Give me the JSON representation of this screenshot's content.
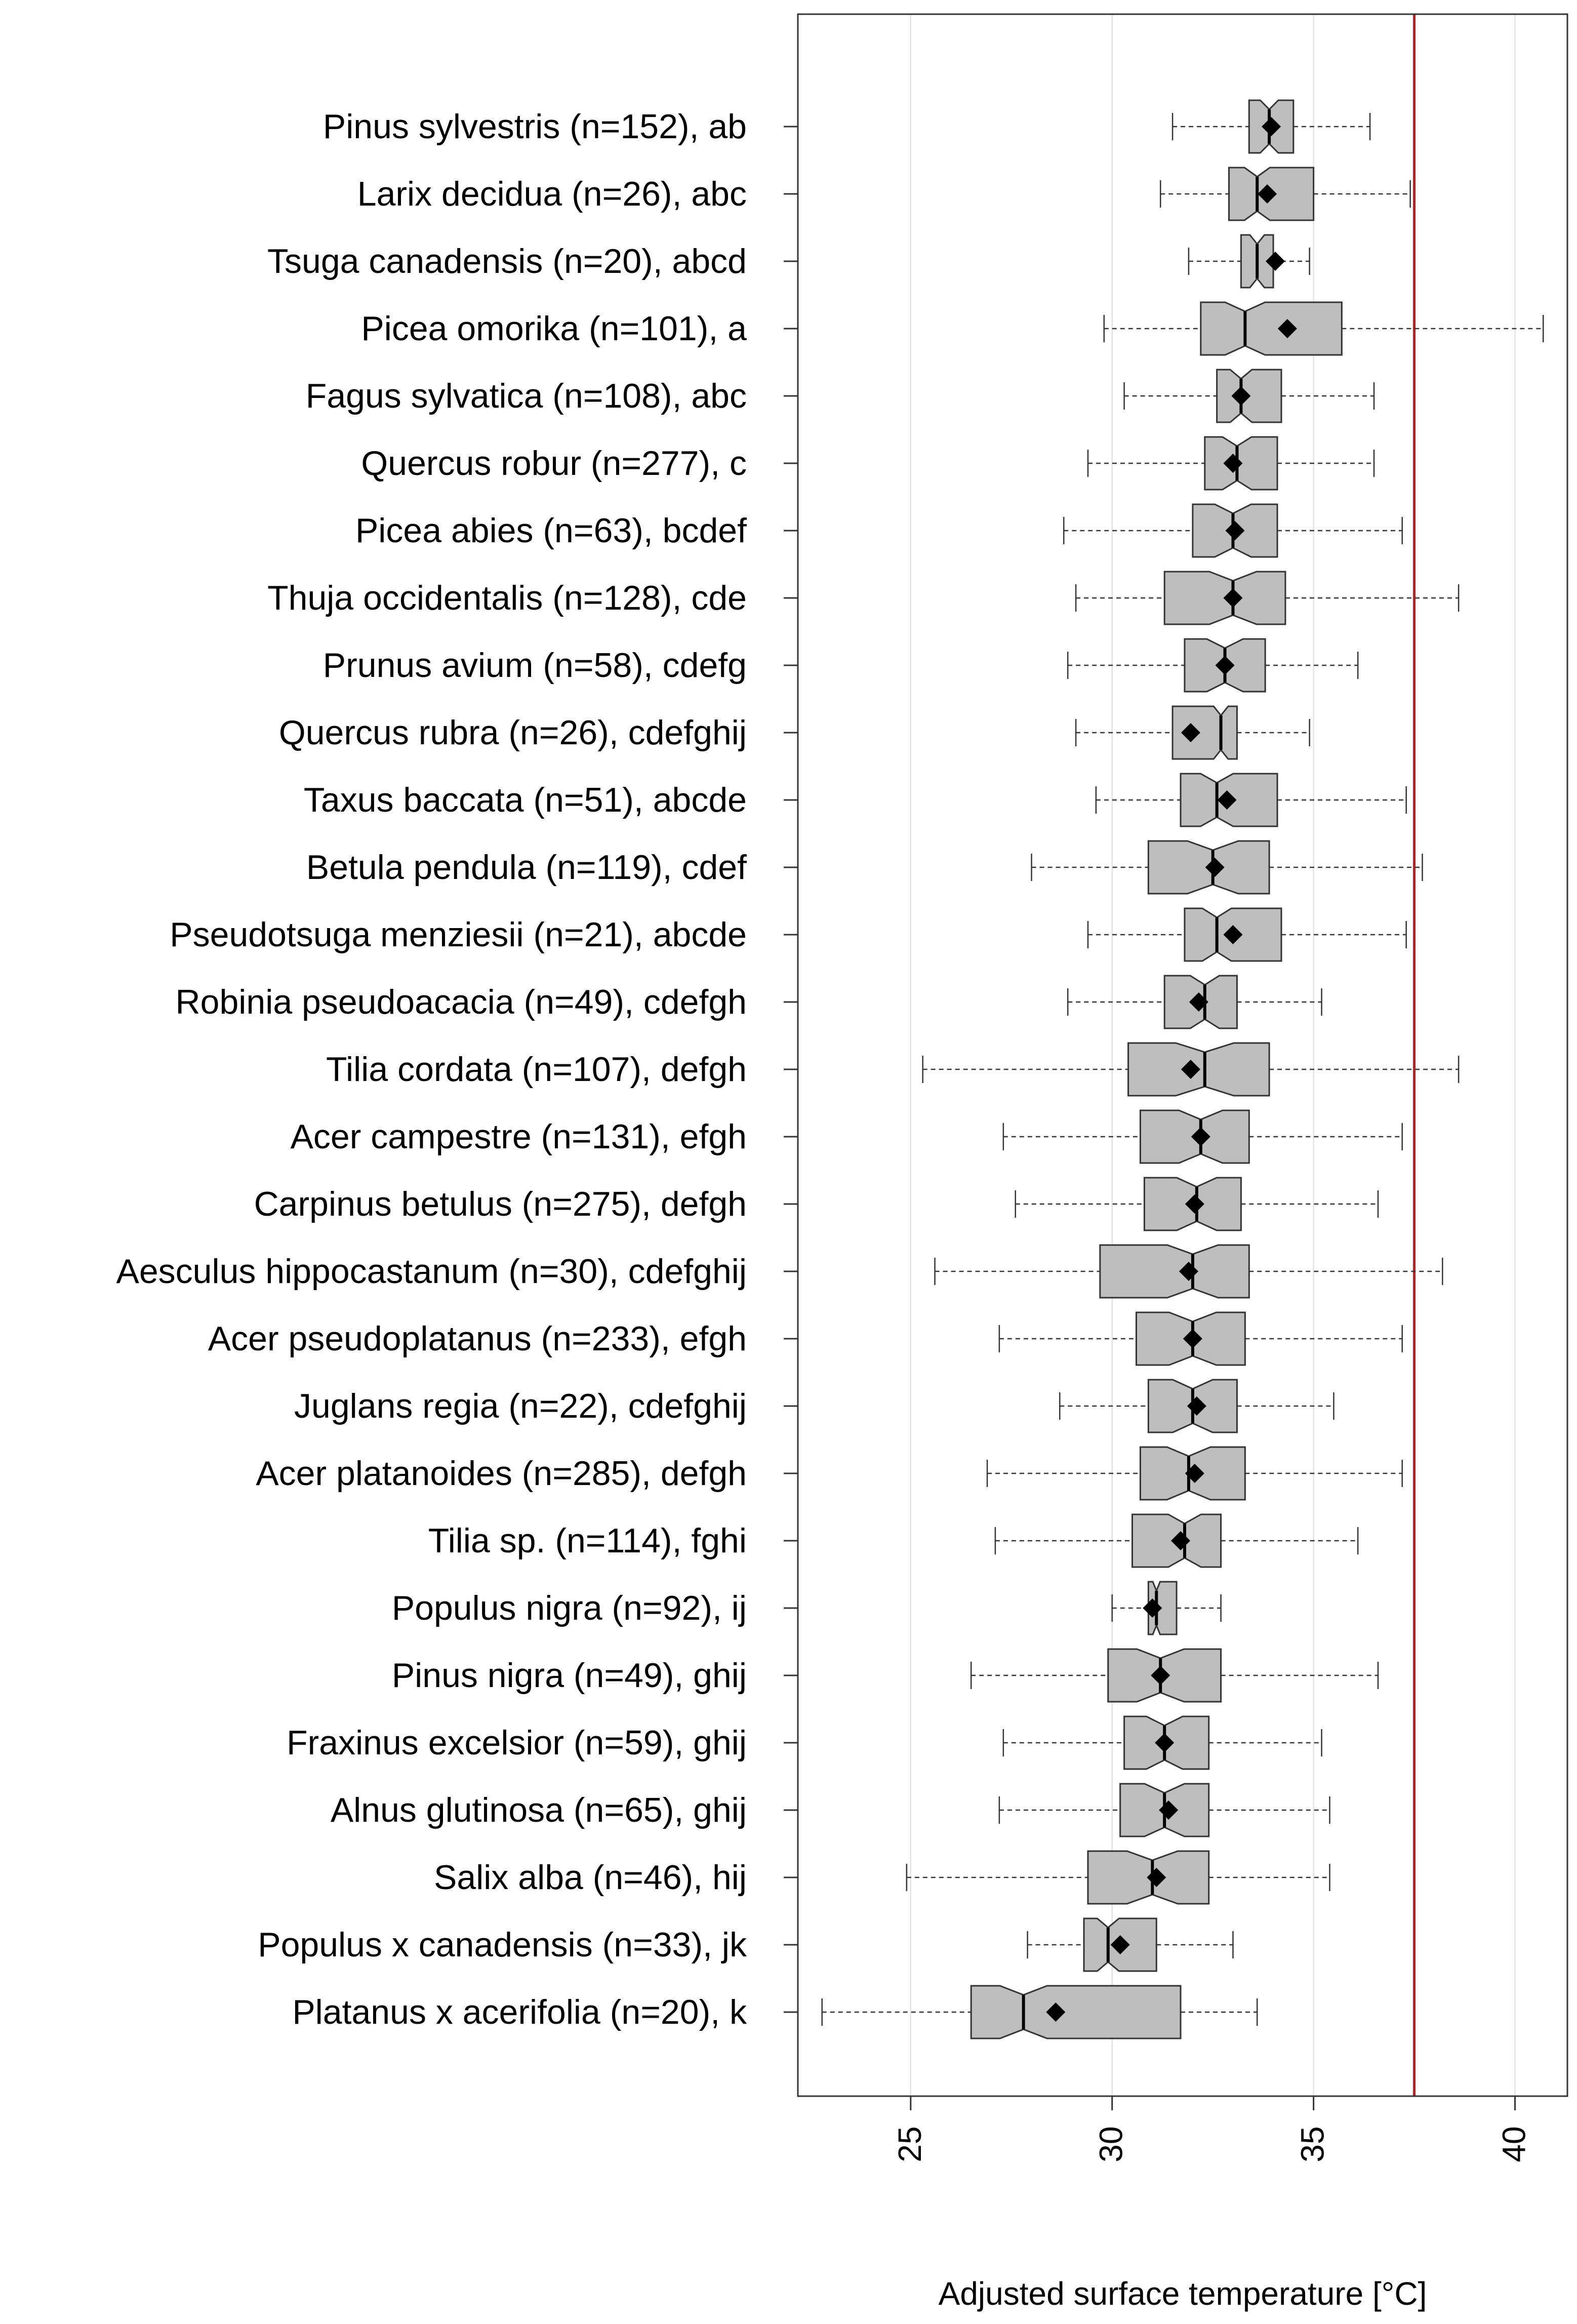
{
  "chart_data": {
    "type": "boxplot",
    "orientation": "horizontal",
    "notched": true,
    "xlabel": "Adjusted surface temperature [°C]",
    "xlim": [
      22.2,
      41.3
    ],
    "xticks": [
      25,
      30,
      35,
      40
    ],
    "xtick_labels": [
      "25",
      "30",
      "35",
      "40"
    ],
    "grid": "vertical",
    "reference_line": {
      "value": 37.5,
      "color": "#b22222"
    },
    "colors": {
      "box_fill": "#bebebe",
      "box_stroke": "#333333",
      "mean_marker": "#000000",
      "grid": "#dddddd"
    },
    "series": [
      {
        "label": "Pinus sylvestris (n=152), ab",
        "whisker_low": 31.5,
        "q1": 33.4,
        "median": 33.9,
        "q3": 34.5,
        "whisker_high": 36.4,
        "mean": 33.95
      },
      {
        "label": "Larix decidua (n=26), abc",
        "whisker_low": 31.2,
        "q1": 32.9,
        "median": 33.6,
        "q3": 35.0,
        "whisker_high": 37.4,
        "mean": 33.85
      },
      {
        "label": "Tsuga canadensis (n=20), abcd",
        "whisker_low": 31.9,
        "q1": 33.2,
        "median": 33.6,
        "q3": 34.0,
        "whisker_high": 34.9,
        "mean": 34.05
      },
      {
        "label": "Picea omorika (n=101), a",
        "whisker_low": 29.8,
        "q1": 32.2,
        "median": 33.3,
        "q3": 35.7,
        "whisker_high": 40.7,
        "mean": 34.35
      },
      {
        "label": "Fagus sylvatica (n=108), abc",
        "whisker_low": 30.3,
        "q1": 32.6,
        "median": 33.2,
        "q3": 34.2,
        "whisker_high": 36.5,
        "mean": 33.2
      },
      {
        "label": "Quercus robur (n=277), c",
        "whisker_low": 29.4,
        "q1": 32.3,
        "median": 33.1,
        "q3": 34.1,
        "whisker_high": 36.5,
        "mean": 33.0
      },
      {
        "label": "Picea abies (n=63), bcdef",
        "whisker_low": 28.8,
        "q1": 32.0,
        "median": 33.0,
        "q3": 34.1,
        "whisker_high": 37.2,
        "mean": 33.05
      },
      {
        "label": "Thuja occidentalis (n=128), cde",
        "whisker_low": 29.1,
        "q1": 31.3,
        "median": 33.0,
        "q3": 34.3,
        "whisker_high": 38.6,
        "mean": 33.0
      },
      {
        "label": "Prunus avium (n=58), cdefg",
        "whisker_low": 28.9,
        "q1": 31.8,
        "median": 32.8,
        "q3": 33.8,
        "whisker_high": 36.1,
        "mean": 32.8
      },
      {
        "label": "Quercus rubra (n=26), cdefghij",
        "whisker_low": 29.1,
        "q1": 31.5,
        "median": 32.7,
        "q3": 33.1,
        "whisker_high": 34.9,
        "mean": 31.95
      },
      {
        "label": "Taxus baccata (n=51), abcde",
        "whisker_low": 29.6,
        "q1": 31.7,
        "median": 32.6,
        "q3": 34.1,
        "whisker_high": 37.3,
        "mean": 32.85
      },
      {
        "label": "Betula pendula (n=119), cdef",
        "whisker_low": 28.0,
        "q1": 30.9,
        "median": 32.5,
        "q3": 33.9,
        "whisker_high": 37.7,
        "mean": 32.55
      },
      {
        "label": "Pseudotsuga menziesii (n=21), abcde",
        "whisker_low": 29.4,
        "q1": 31.8,
        "median": 32.6,
        "q3": 34.2,
        "whisker_high": 37.3,
        "mean": 33.0
      },
      {
        "label": "Robinia pseudoacacia (n=49), cdefgh",
        "whisker_low": 28.9,
        "q1": 31.3,
        "median": 32.3,
        "q3": 33.1,
        "whisker_high": 35.2,
        "mean": 32.15
      },
      {
        "label": "Tilia cordata (n=107), defgh",
        "whisker_low": 25.3,
        "q1": 30.4,
        "median": 32.3,
        "q3": 33.9,
        "whisker_high": 38.6,
        "mean": 31.95
      },
      {
        "label": "Acer campestre (n=131), efgh",
        "whisker_low": 27.3,
        "q1": 30.7,
        "median": 32.2,
        "q3": 33.4,
        "whisker_high": 37.2,
        "mean": 32.2
      },
      {
        "label": "Carpinus betulus (n=275), defgh",
        "whisker_low": 27.6,
        "q1": 30.8,
        "median": 32.1,
        "q3": 33.2,
        "whisker_high": 36.6,
        "mean": 32.05
      },
      {
        "label": "Aesculus hippocastanum (n=30), cdefghij",
        "whisker_low": 25.6,
        "q1": 29.7,
        "median": 32.0,
        "q3": 33.4,
        "whisker_high": 38.2,
        "mean": 31.9
      },
      {
        "label": "Acer pseudoplatanus (n=233), efgh",
        "whisker_low": 27.2,
        "q1": 30.6,
        "median": 32.0,
        "q3": 33.3,
        "whisker_high": 37.2,
        "mean": 32.0
      },
      {
        "label": "Juglans regia (n=22), cdefghij",
        "whisker_low": 28.7,
        "q1": 30.9,
        "median": 32.0,
        "q3": 33.1,
        "whisker_high": 35.5,
        "mean": 32.1
      },
      {
        "label": "Acer platanoides (n=285), defgh",
        "whisker_low": 26.9,
        "q1": 30.7,
        "median": 31.9,
        "q3": 33.3,
        "whisker_high": 37.2,
        "mean": 32.05
      },
      {
        "label": "Tilia sp. (n=114), fghi",
        "whisker_low": 27.1,
        "q1": 30.5,
        "median": 31.8,
        "q3": 32.7,
        "whisker_high": 36.1,
        "mean": 31.7
      },
      {
        "label": "Populus nigra (n=92), ij",
        "whisker_low": 30.0,
        "q1": 30.9,
        "median": 31.1,
        "q3": 31.6,
        "whisker_high": 32.7,
        "mean": 31.0
      },
      {
        "label": "Pinus nigra (n=49), ghij",
        "whisker_low": 26.5,
        "q1": 29.9,
        "median": 31.2,
        "q3": 32.7,
        "whisker_high": 36.6,
        "mean": 31.2
      },
      {
        "label": "Fraxinus excelsior (n=59), ghij",
        "whisker_low": 27.3,
        "q1": 30.3,
        "median": 31.3,
        "q3": 32.4,
        "whisker_high": 35.2,
        "mean": 31.3
      },
      {
        "label": "Alnus glutinosa (n=65), ghij",
        "whisker_low": 27.2,
        "q1": 30.2,
        "median": 31.3,
        "q3": 32.4,
        "whisker_high": 35.4,
        "mean": 31.4
      },
      {
        "label": "Salix alba (n=46), hij",
        "whisker_low": 24.9,
        "q1": 29.4,
        "median": 31.0,
        "q3": 32.4,
        "whisker_high": 35.4,
        "mean": 31.1
      },
      {
        "label": "Populus x canadensis (n=33), jk",
        "whisker_low": 27.9,
        "q1": 29.3,
        "median": 29.9,
        "q3": 31.1,
        "whisker_high": 33.0,
        "mean": 30.2
      },
      {
        "label": "Platanus x acerifolia (n=20), k",
        "whisker_low": 22.8,
        "q1": 26.5,
        "median": 27.8,
        "q3": 31.7,
        "whisker_high": 33.6,
        "mean": 28.6
      }
    ]
  }
}
